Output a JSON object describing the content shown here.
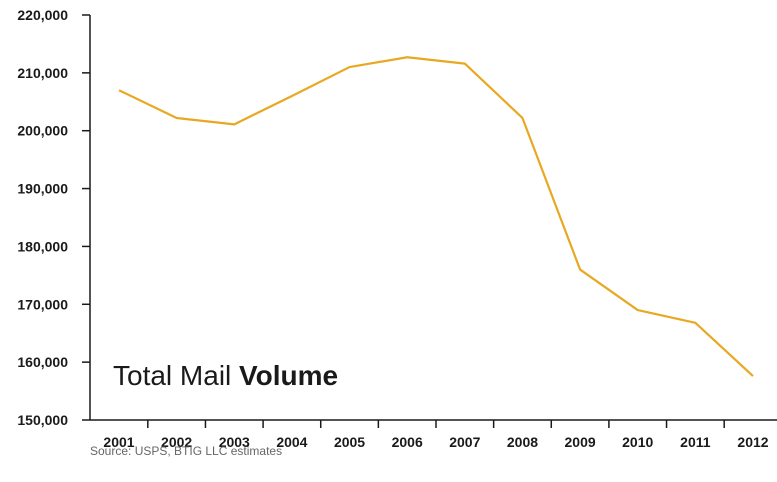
{
  "chart_data": {
    "type": "line",
    "title_light": "Total Mail ",
    "title_bold": "Volume",
    "source": "Source: USPS, BTIG LLC estimates",
    "categories": [
      "2001",
      "2002",
      "2003",
      "2004",
      "2005",
      "2006",
      "2007",
      "2008",
      "2009",
      "2010",
      "2011",
      "2012"
    ],
    "series": [
      {
        "values": [
          207000,
          202200,
          201100,
          206000,
          211000,
          212700,
          211600,
          202200,
          176000,
          169000,
          166800,
          157600
        ]
      }
    ],
    "ylim": [
      150000,
      220000
    ],
    "yticks": [
      150000,
      160000,
      170000,
      180000,
      190000,
      200000,
      210000,
      220000
    ],
    "ytick_labels": [
      "150,000",
      "160,000",
      "170,000",
      "180,000",
      "190,000",
      "200,000",
      "210,000",
      "220,000"
    ],
    "line_color": "#E8A822",
    "axis_color": "#1a1a1a",
    "grid": false
  }
}
